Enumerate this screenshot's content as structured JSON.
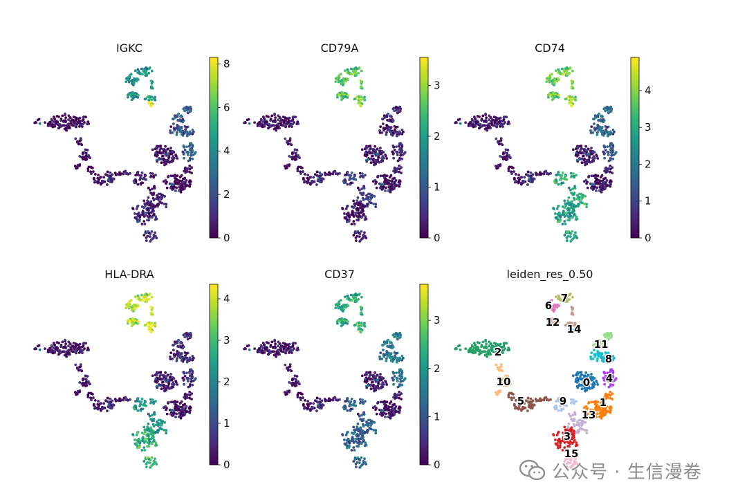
{
  "chart_data": [
    {
      "type": "scatter",
      "title": "IGKC",
      "colormap": "viridis",
      "colorbar_ticks": [
        0,
        2,
        4,
        6,
        8
      ],
      "colorbar_range": [
        0,
        8.3
      ],
      "expression": {
        "main": 0.2,
        "islands": 4.3,
        "a_tr": 2.2,
        "a_br": 2.4,
        "c_top": 0.5,
        "c_bot": 1.0,
        "hot": 8.2
      }
    },
    {
      "type": "scatter",
      "title": "CD79A",
      "colormap": "viridis",
      "colorbar_ticks": [
        0,
        1,
        2,
        3
      ],
      "colorbar_range": [
        0,
        3.55
      ],
      "expression": {
        "main": 0.2,
        "islands": 2.6,
        "a_tr": 0.3,
        "a_br": 0.3,
        "c_top": 0.6,
        "c_bot": 0.2,
        "hot": 3.0
      }
    },
    {
      "type": "scatter",
      "title": "CD74",
      "colormap": "viridis",
      "colorbar_ticks": [
        0,
        1,
        2,
        3,
        4
      ],
      "colorbar_range": [
        0,
        4.9
      ],
      "expression": {
        "main": 0.3,
        "islands": 3.8,
        "a_tr": 1.6,
        "a_br": 1.2,
        "c_top": 3.0,
        "c_bot": 2.8,
        "hot": 4.5
      }
    },
    {
      "type": "scatter",
      "title": "HLA-DRA",
      "colormap": "viridis",
      "colorbar_ticks": [
        0,
        1,
        2,
        3,
        4
      ],
      "colorbar_range": [
        0,
        4.35
      ],
      "expression": {
        "main": 0.2,
        "islands": 3.9,
        "a_tr": 0.5,
        "a_br": 0.6,
        "c_top": 2.2,
        "c_bot": 2.8,
        "hot": 4.2
      }
    },
    {
      "type": "scatter",
      "title": "CD37",
      "colormap": "viridis",
      "colorbar_ticks": [
        0,
        1,
        2,
        3
      ],
      "colorbar_range": [
        0,
        3.75
      ],
      "expression": {
        "main": 0.2,
        "islands": 2.3,
        "a_tr": 1.5,
        "a_br": 1.3,
        "c_top": 1.1,
        "c_bot": 1.2,
        "hot": 2.5
      }
    },
    {
      "type": "scatter",
      "title": "leiden_res_0.50",
      "categorical": true,
      "clusters": [
        "0",
        "1",
        "2",
        "3",
        "4",
        "5",
        "6",
        "7",
        "8",
        "9",
        "10",
        "11",
        "12",
        "13",
        "14",
        "15"
      ],
      "cluster_colors": [
        "#1f77b4",
        "#ff7f0e",
        "#279e68",
        "#d62728",
        "#aa40fc",
        "#8c564b",
        "#e377c2",
        "#b5bd61",
        "#17becf",
        "#aec7e8",
        "#ffbb78",
        "#98df8a",
        "#ff9896",
        "#c5b0d5",
        "#c49c94",
        "#f7b6d2"
      ]
    }
  ],
  "watermark": {
    "text": "公众号 · 生信漫卷"
  }
}
